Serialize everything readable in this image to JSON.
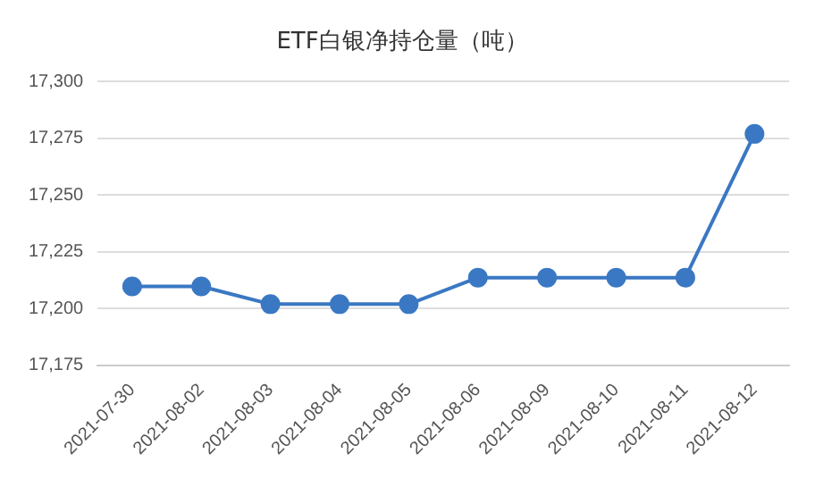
{
  "chart_data": {
    "type": "line",
    "title": "ETF白银净持仓量（吨）",
    "categories": [
      "2021-07-30",
      "2021-08-02",
      "2021-08-03",
      "2021-08-04",
      "2021-08-05",
      "2021-08-06",
      "2021-08-09",
      "2021-08-10",
      "2021-08-11",
      "2021-08-12"
    ],
    "series": [
      {
        "color": "#3a78c3",
        "values": [
          17209.7,
          17209.7,
          17201.9,
          17201.9,
          17201.9,
          17213.6,
          17213.6,
          17213.6,
          17213.6,
          17276.9
        ]
      }
    ],
    "ylim": [
      17175,
      17300
    ],
    "yticks": [
      {
        "value": 17175,
        "label": "17,175"
      },
      {
        "value": 17200,
        "label": "17,200"
      },
      {
        "value": 17225,
        "label": "17,225"
      },
      {
        "value": 17250,
        "label": "17,250"
      },
      {
        "value": 17275,
        "label": "17,275"
      },
      {
        "value": 17300,
        "label": "17,300"
      }
    ],
    "grid": "y",
    "marker": "circle",
    "legend": false
  }
}
